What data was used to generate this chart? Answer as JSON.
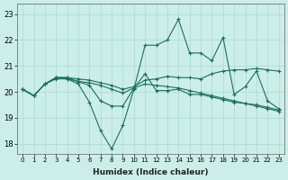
{
  "xlabel": "Humidex (Indice chaleur)",
  "xlim": [
    -0.5,
    23.5
  ],
  "ylim": [
    17.6,
    23.4
  ],
  "yticks": [
    18,
    19,
    20,
    21,
    22,
    23
  ],
  "xticks": [
    0,
    1,
    2,
    3,
    4,
    5,
    6,
    7,
    8,
    9,
    10,
    11,
    12,
    13,
    14,
    15,
    16,
    17,
    18,
    19,
    20,
    21,
    22,
    23
  ],
  "bg_color": "#cceee8",
  "grid_color": "#aad8d0",
  "line_color": "#1a6e60",
  "series": {
    "line_spiky": [
      20.1,
      19.85,
      20.3,
      20.5,
      20.5,
      20.3,
      19.6,
      18.5,
      17.8,
      18.7,
      20.1,
      21.8,
      21.8,
      22.0,
      22.8,
      21.5,
      21.5,
      21.2,
      22.1,
      19.9,
      20.2,
      20.8,
      19.65,
      19.35
    ],
    "line_flat1": [
      20.1,
      19.85,
      20.3,
      20.55,
      20.55,
      20.5,
      20.45,
      20.35,
      20.25,
      20.1,
      20.2,
      20.45,
      20.5,
      20.6,
      20.55,
      20.55,
      20.5,
      20.7,
      20.8,
      20.85,
      20.85,
      20.9,
      20.85,
      20.8
    ],
    "line_flat2": [
      20.1,
      19.85,
      20.3,
      20.55,
      20.55,
      20.4,
      20.35,
      20.25,
      20.1,
      19.95,
      20.15,
      20.3,
      20.25,
      20.2,
      20.15,
      20.05,
      19.95,
      19.85,
      19.75,
      19.65,
      19.55,
      19.5,
      19.4,
      19.3
    ],
    "line_decline": [
      20.1,
      19.85,
      20.3,
      20.55,
      20.5,
      20.4,
      20.25,
      19.65,
      19.45,
      19.45,
      20.15,
      20.7,
      20.05,
      20.05,
      20.1,
      19.9,
      19.9,
      19.8,
      19.7,
      19.6,
      19.55,
      19.45,
      19.35,
      19.25
    ]
  }
}
